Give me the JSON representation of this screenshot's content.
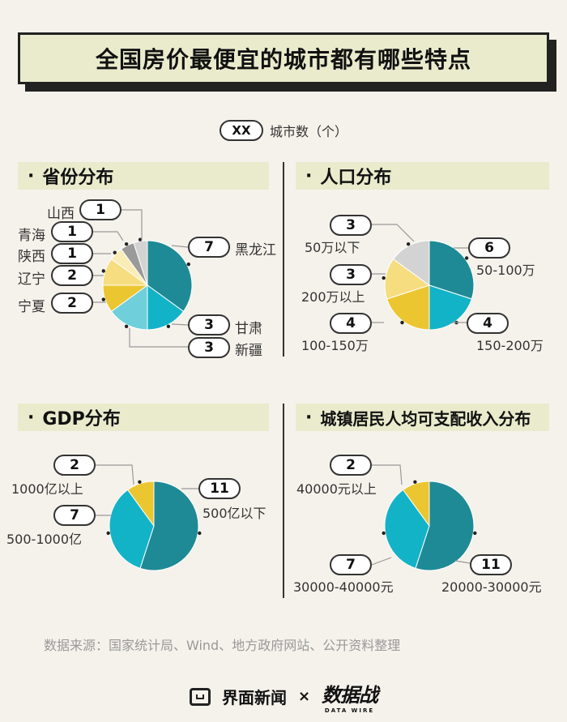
{
  "title": "全国房价最便宜的城市都有哪些特点",
  "legend": {
    "pill": "XX",
    "text": "城市数（个）"
  },
  "source": "数据来源：国家统计局、Wind、地方政府网站、公开资料整理",
  "footer": {
    "brand1": "界面新闻",
    "sep": "×",
    "brand2": "数据战",
    "brand2_sub": "DATA WIRE"
  },
  "colors": {
    "dark_teal": "#1e8a96",
    "cyan": "#13b3c7",
    "light_cyan": "#6fd0dc",
    "yellow": "#ecc631",
    "light_yellow": "#f5dd80",
    "pale_yellow": "#f9ecb6",
    "gray": "#9a9a9a",
    "light_gray": "#d3d3d3"
  },
  "chart_data": [
    {
      "type": "pie",
      "title": "省份分布",
      "slices": [
        {
          "name": "黑龙江",
          "value": 7,
          "color": "#1e8a96"
        },
        {
          "name": "甘肃",
          "value": 3,
          "color": "#13b3c7"
        },
        {
          "name": "新疆",
          "value": 3,
          "color": "#6fd0dc"
        },
        {
          "name": "宁夏",
          "value": 2,
          "color": "#ecc631"
        },
        {
          "name": "辽宁",
          "value": 2,
          "color": "#f5dd80"
        },
        {
          "name": "陕西",
          "value": 1,
          "color": "#f9ecb6"
        },
        {
          "name": "青海",
          "value": 1,
          "color": "#9a9a9a"
        },
        {
          "name": "山西",
          "value": 1,
          "color": "#d3d3d3"
        }
      ]
    },
    {
      "type": "pie",
      "title": "人口分布",
      "slices": [
        {
          "name": "50-100万",
          "value": 6,
          "color": "#1e8a96"
        },
        {
          "name": "150-200万",
          "value": 4,
          "color": "#13b3c7"
        },
        {
          "name": "100-150万",
          "value": 4,
          "color": "#ecc631"
        },
        {
          "name": "200万以上",
          "value": 3,
          "color": "#f5dd80"
        },
        {
          "name": "50万以下",
          "value": 3,
          "color": "#d3d3d3"
        }
      ]
    },
    {
      "type": "pie",
      "title": "GDP分布",
      "slices": [
        {
          "name": "500亿以下",
          "value": 11,
          "color": "#1e8a96"
        },
        {
          "name": "500-1000亿",
          "value": 7,
          "color": "#13b3c7"
        },
        {
          "name": "1000亿以上",
          "value": 2,
          "color": "#ecc631"
        }
      ]
    },
    {
      "type": "pie",
      "title": "城镇居民人均可支配收入分布",
      "slices": [
        {
          "name": "20000-30000元",
          "value": 11,
          "color": "#1e8a96"
        },
        {
          "name": "30000-40000元",
          "value": 7,
          "color": "#13b3c7"
        },
        {
          "name": "40000元以上",
          "value": 2,
          "color": "#ecc631"
        }
      ]
    }
  ]
}
